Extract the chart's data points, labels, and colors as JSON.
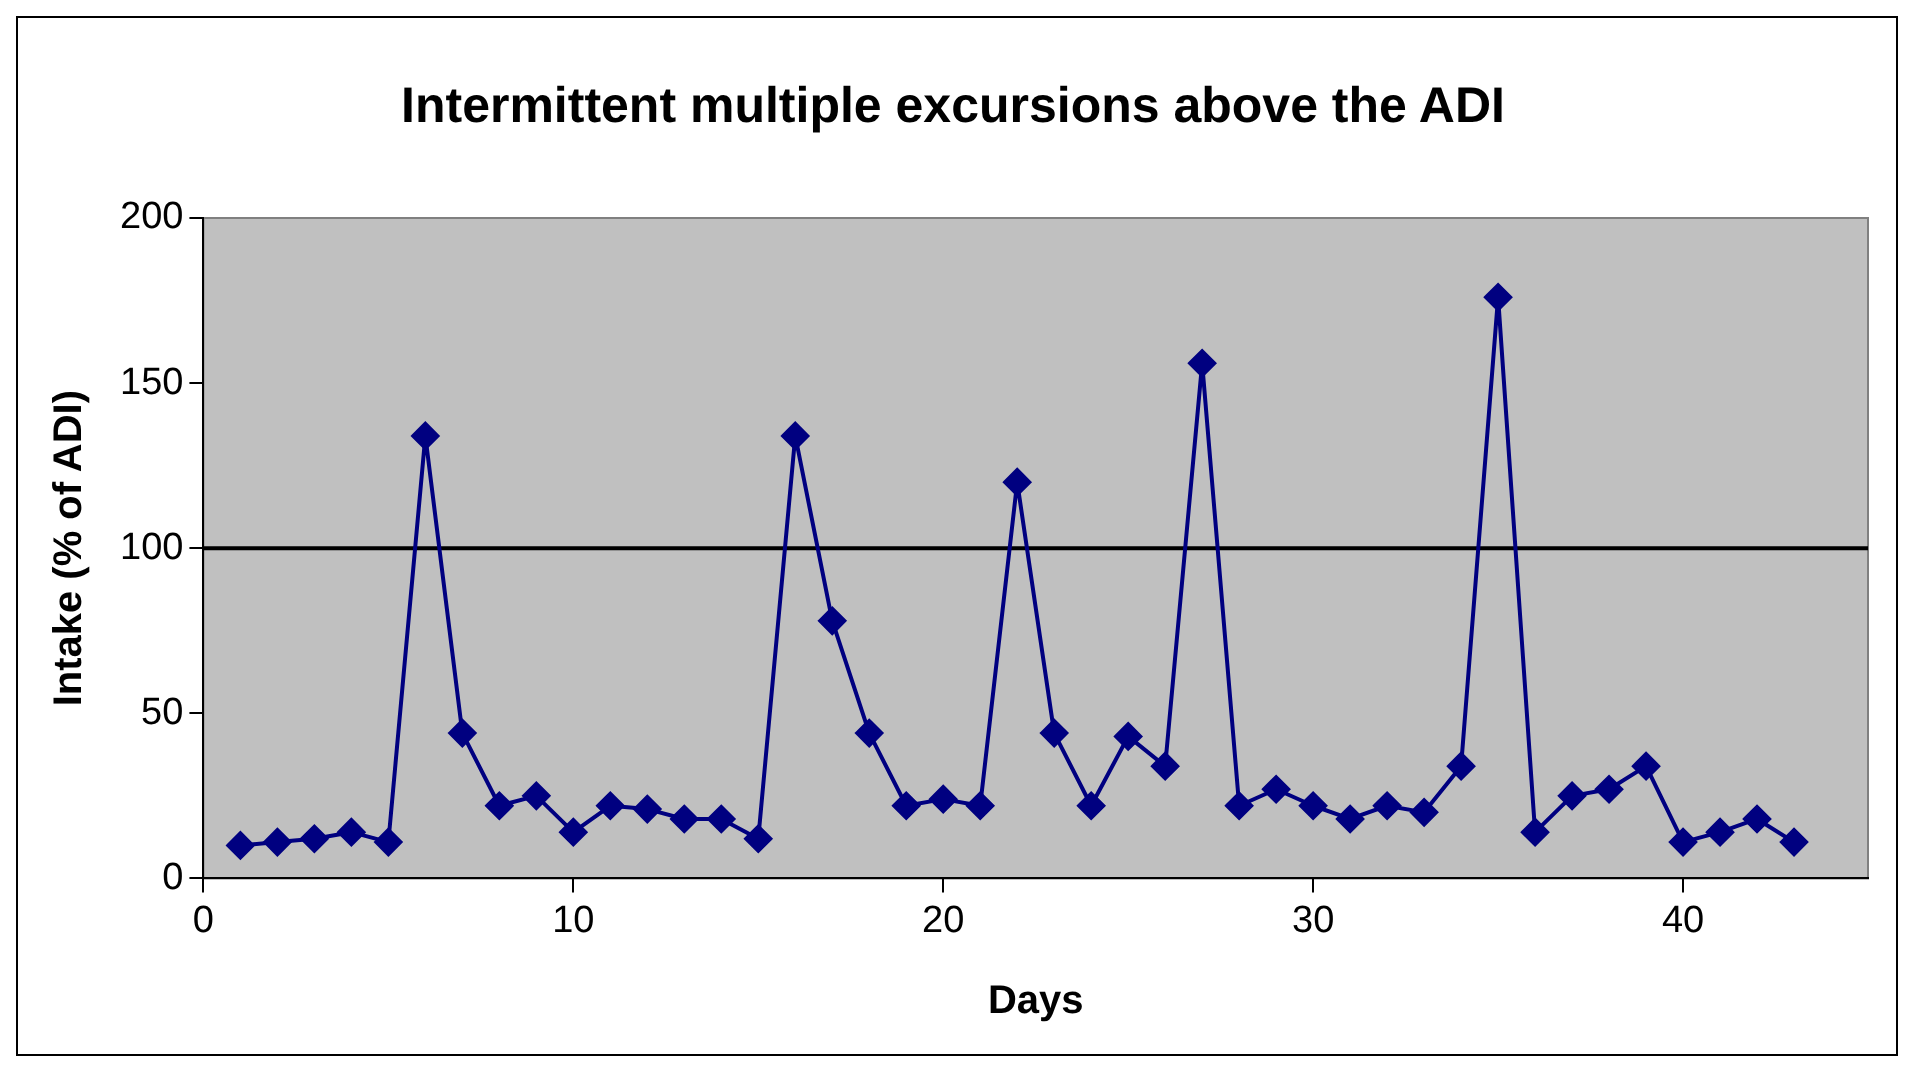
{
  "chart_data": {
    "type": "line",
    "title": "Intermittent multiple excursions above the ADI",
    "xlabel": "Days",
    "ylabel": "Intake (% of ADI)",
    "x": [
      1,
      2,
      3,
      4,
      5,
      6,
      7,
      8,
      9,
      10,
      11,
      12,
      13,
      14,
      15,
      16,
      17,
      18,
      19,
      20,
      21,
      22,
      23,
      24,
      25,
      26,
      27,
      28,
      29,
      30,
      31,
      32,
      33,
      34,
      35,
      36,
      37,
      38,
      39,
      40,
      41,
      42,
      43
    ],
    "series": [
      {
        "color": "#000080",
        "values": [
          10,
          11,
          12,
          14,
          11,
          134,
          44,
          22,
          25,
          14,
          22,
          21,
          18,
          18,
          12,
          134,
          78,
          44,
          22,
          24,
          22,
          120,
          44,
          22,
          43,
          34,
          156,
          22,
          27,
          22,
          18,
          22,
          20,
          34,
          176,
          14,
          25,
          27,
          34,
          11,
          14,
          18,
          11
        ]
      }
    ],
    "xlim": [
      0,
      45
    ],
    "xticks": [
      0,
      10,
      20,
      30,
      40
    ],
    "ylim": [
      0,
      200
    ],
    "yticks": [
      0,
      50,
      100,
      150,
      200
    ],
    "ref_lines": [
      {
        "axis": "y",
        "value": 100,
        "color": "#000000"
      }
    ],
    "grid": false,
    "legend": false,
    "marker": "diamond",
    "line_style": "solid"
  }
}
